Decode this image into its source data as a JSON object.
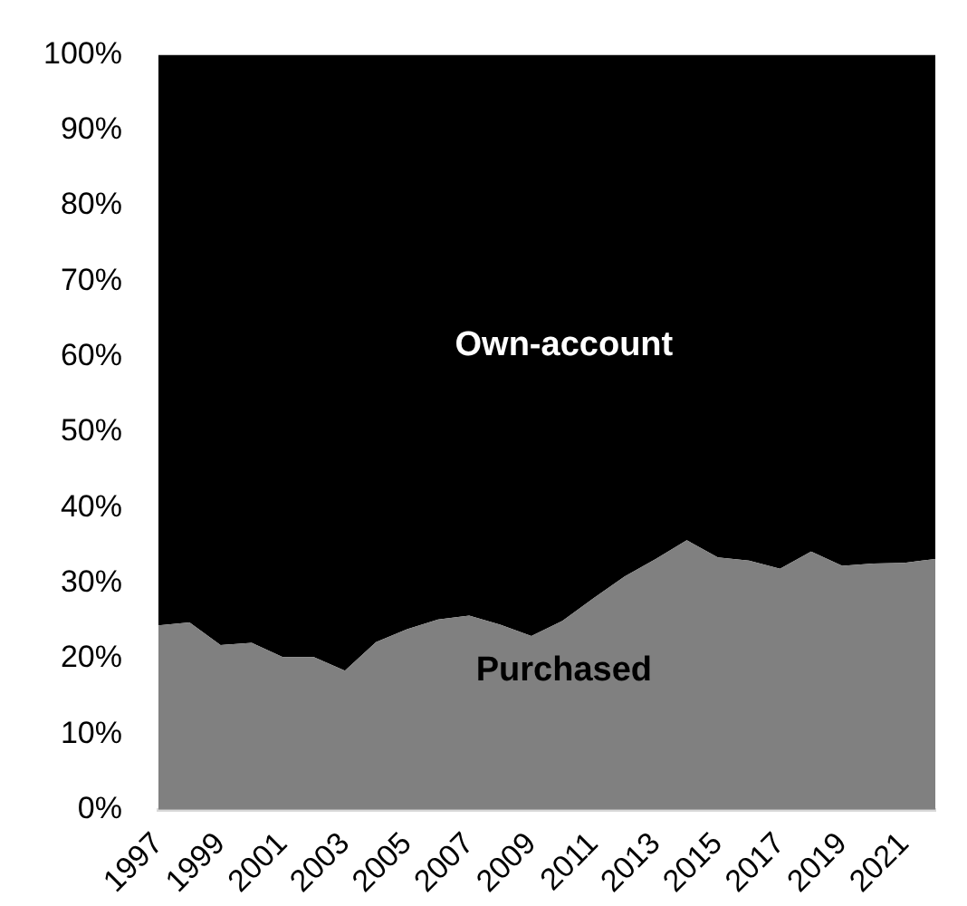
{
  "chart_data": {
    "type": "area",
    "stacked": true,
    "categories": [
      "1997",
      null,
      "1999",
      null,
      "2001",
      null,
      "2003",
      null,
      "2005",
      null,
      "2007",
      null,
      "2009",
      null,
      "2011",
      null,
      "2013",
      null,
      "2015",
      null,
      "2017",
      null,
      "2019",
      null,
      "2021",
      null
    ],
    "series": [
      {
        "name": "Purchased",
        "color": "#808080",
        "values": [
          24.4,
          24.8,
          21.8,
          22.1,
          20.2,
          20.2,
          18.4,
          22.2,
          23.9,
          25.2,
          25.7,
          24.5,
          23.0,
          25.0,
          28.0,
          30.9,
          33.2,
          35.7,
          33.4,
          33.0,
          31.9,
          34.2,
          32.3,
          32.6,
          32.7,
          33.2
        ]
      },
      {
        "name": "Own-account",
        "color": "#000000",
        "values": [
          75.6,
          75.2,
          78.2,
          77.9,
          79.8,
          79.8,
          81.6,
          77.8,
          76.1,
          74.8,
          74.3,
          75.5,
          77.0,
          75.0,
          72.0,
          69.1,
          66.8,
          64.3,
          66.6,
          67.0,
          68.1,
          65.8,
          67.7,
          67.4,
          67.3,
          66.8
        ]
      }
    ],
    "ylim": [
      0,
      100
    ],
    "yticks": [
      {
        "value": 0,
        "label": "0%"
      },
      {
        "value": 10,
        "label": "10%"
      },
      {
        "value": 20,
        "label": "20%"
      },
      {
        "value": 30,
        "label": "30%"
      },
      {
        "value": 40,
        "label": "40%"
      },
      {
        "value": 50,
        "label": "50%"
      },
      {
        "value": 60,
        "label": "60%"
      },
      {
        "value": 70,
        "label": "70%"
      },
      {
        "value": 80,
        "label": "80%"
      },
      {
        "value": 90,
        "label": "90%"
      },
      {
        "value": 100,
        "label": "100%"
      }
    ],
    "grid": false,
    "legend": false
  }
}
